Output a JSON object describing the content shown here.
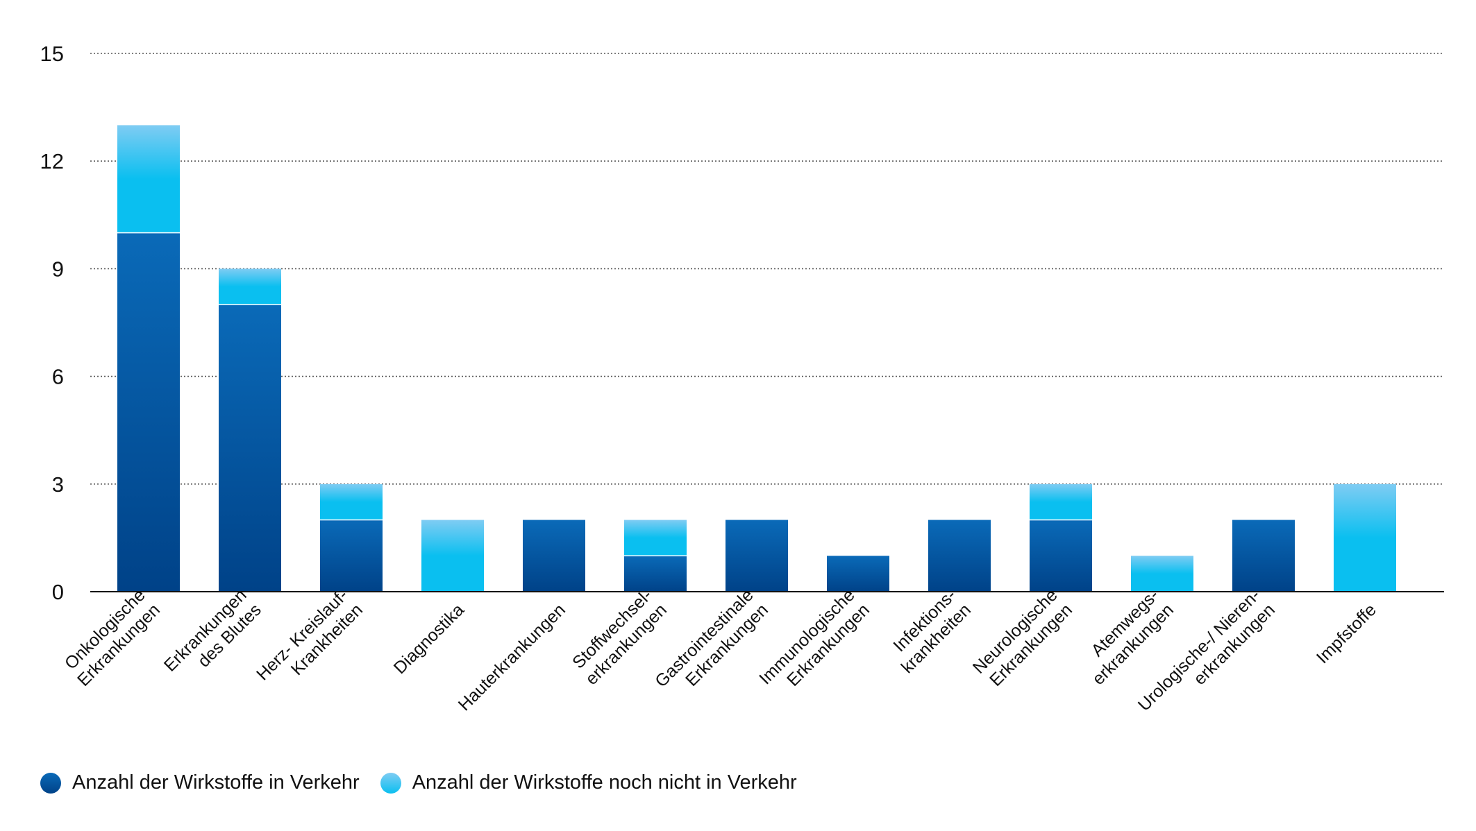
{
  "colors": {
    "in_verkehr_top": "#0a6ab8",
    "in_verkehr_bottom": "#004288",
    "nicht_in_verkehr": "#0abff0",
    "nicht_in_verkehr_top": "#7fccf3",
    "axis": "#111111",
    "grid": "#555555"
  },
  "legend": {
    "items": [
      {
        "label": "Anzahl der Wirkstoffe in Verkehr",
        "icon": "dark-blue-dot"
      },
      {
        "label": "Anzahl der Wirkstoffe noch nicht in Verkehr",
        "icon": "light-blue-dot"
      }
    ]
  },
  "chart_data": {
    "type": "bar",
    "stacked": true,
    "ylim": [
      0,
      15
    ],
    "yticks": [
      0,
      3,
      6,
      9,
      12,
      15
    ],
    "grid": true,
    "legend_position": "bottom-left",
    "categories": [
      [
        "Onkologische",
        "Erkrankungen"
      ],
      [
        "Erkrankungen",
        "des Blutes"
      ],
      [
        "Herz- Kreislauf-",
        "Krankheiten"
      ],
      [
        "Diagnostika"
      ],
      [
        "Hauterkrankungen"
      ],
      [
        "Stoffwechsel-",
        "erkrankungen"
      ],
      [
        "Gastrointestinale",
        "Erkrankungen"
      ],
      [
        "Immunologische",
        "Erkrankungen"
      ],
      [
        "Infektions-",
        "krankheiten"
      ],
      [
        "Neurologische",
        "Erkrankungen"
      ],
      [
        "Atemwegs-",
        "erkrankungen"
      ],
      [
        "Urologische-/ Nieren-",
        "erkrankungen"
      ],
      [
        "Impfstoffe"
      ]
    ],
    "series": [
      {
        "name": "Anzahl der Wirkstoffe in Verkehr",
        "values": [
          10,
          8,
          2,
          0,
          2,
          1,
          2,
          1,
          2,
          2,
          0,
          2,
          0
        ]
      },
      {
        "name": "Anzahl der Wirkstoffe noch nicht in Verkehr",
        "values": [
          3,
          1,
          1,
          2,
          0,
          1,
          0,
          0,
          0,
          1,
          1,
          0,
          3
        ]
      }
    ]
  }
}
